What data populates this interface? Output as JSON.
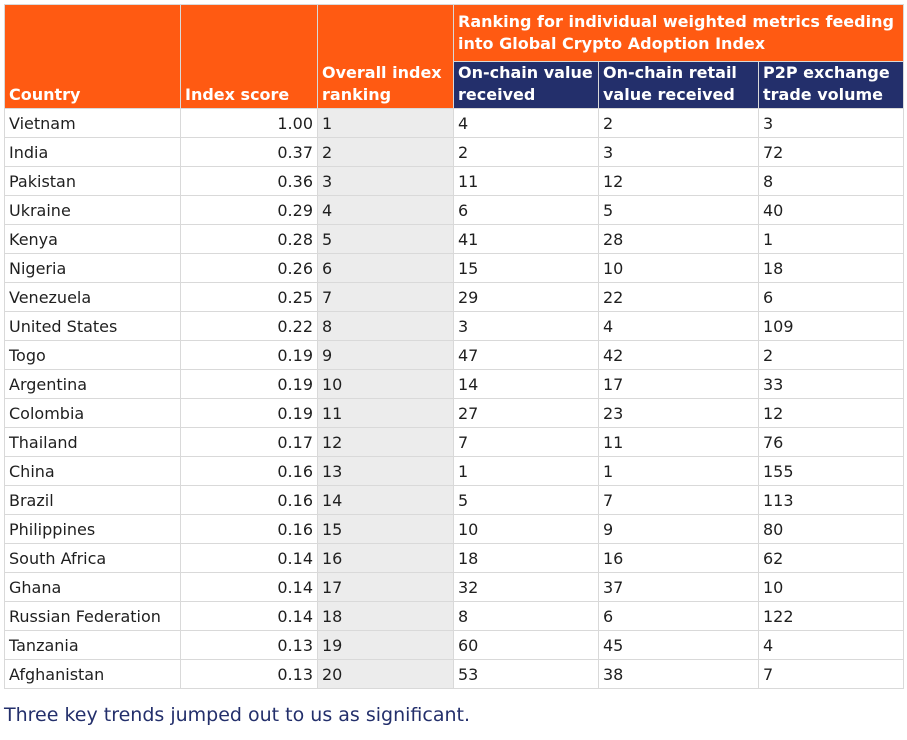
{
  "table": {
    "headers": {
      "country": "Country",
      "index_score": "Index score",
      "overall_ranking": "Overall index ranking",
      "group": "Ranking for individual weighted metrics feeding into Global Crypto Adoption Index",
      "metric1": "On-chain value received",
      "metric2": "On-chain retail value received",
      "metric3": "P2P exchange trade volume"
    },
    "rows": [
      {
        "country": "Vietnam",
        "score": "1.00",
        "rank": "1",
        "m1": "4",
        "m2": "2",
        "m3": "3"
      },
      {
        "country": "India",
        "score": "0.37",
        "rank": "2",
        "m1": "2",
        "m2": "3",
        "m3": "72"
      },
      {
        "country": "Pakistan",
        "score": "0.36",
        "rank": "3",
        "m1": "11",
        "m2": "12",
        "m3": "8"
      },
      {
        "country": "Ukraine",
        "score": "0.29",
        "rank": "4",
        "m1": "6",
        "m2": "5",
        "m3": "40"
      },
      {
        "country": "Kenya",
        "score": "0.28",
        "rank": "5",
        "m1": "41",
        "m2": "28",
        "m3": "1"
      },
      {
        "country": "Nigeria",
        "score": "0.26",
        "rank": "6",
        "m1": "15",
        "m2": "10",
        "m3": "18"
      },
      {
        "country": "Venezuela",
        "score": "0.25",
        "rank": "7",
        "m1": "29",
        "m2": "22",
        "m3": "6"
      },
      {
        "country": "United States",
        "score": "0.22",
        "rank": "8",
        "m1": "3",
        "m2": "4",
        "m3": "109"
      },
      {
        "country": "Togo",
        "score": "0.19",
        "rank": "9",
        "m1": "47",
        "m2": "42",
        "m3": "2"
      },
      {
        "country": "Argentina",
        "score": "0.19",
        "rank": "10",
        "m1": "14",
        "m2": "17",
        "m3": "33"
      },
      {
        "country": "Colombia",
        "score": "0.19",
        "rank": "11",
        "m1": "27",
        "m2": "23",
        "m3": "12"
      },
      {
        "country": "Thailand",
        "score": "0.17",
        "rank": "12",
        "m1": "7",
        "m2": "11",
        "m3": "76"
      },
      {
        "country": "China",
        "score": "0.16",
        "rank": "13",
        "m1": "1",
        "m2": "1",
        "m3": "155"
      },
      {
        "country": "Brazil",
        "score": "0.16",
        "rank": "14",
        "m1": "5",
        "m2": "7",
        "m3": "113"
      },
      {
        "country": "Philippines",
        "score": "0.16",
        "rank": "15",
        "m1": "10",
        "m2": "9",
        "m3": "80"
      },
      {
        "country": "South Africa",
        "score": "0.14",
        "rank": "16",
        "m1": "18",
        "m2": "16",
        "m3": "62"
      },
      {
        "country": "Ghana",
        "score": "0.14",
        "rank": "17",
        "m1": "32",
        "m2": "37",
        "m3": "10"
      },
      {
        "country": "Russian Federation",
        "score": "0.14",
        "rank": "18",
        "m1": "8",
        "m2": "6",
        "m3": "122"
      },
      {
        "country": "Tanzania",
        "score": "0.13",
        "rank": "19",
        "m1": "60",
        "m2": "45",
        "m3": "4"
      },
      {
        "country": "Afghanistan",
        "score": "0.13",
        "rank": "20",
        "m1": "53",
        "m2": "38",
        "m3": "7"
      }
    ]
  },
  "caption": "Three key trends jumped out to us as significant.",
  "colors": {
    "header_orange": "#ff5a12",
    "header_navy": "#232f6b",
    "rank_column_bg": "#ececec",
    "caption_text": "#232f6b"
  }
}
